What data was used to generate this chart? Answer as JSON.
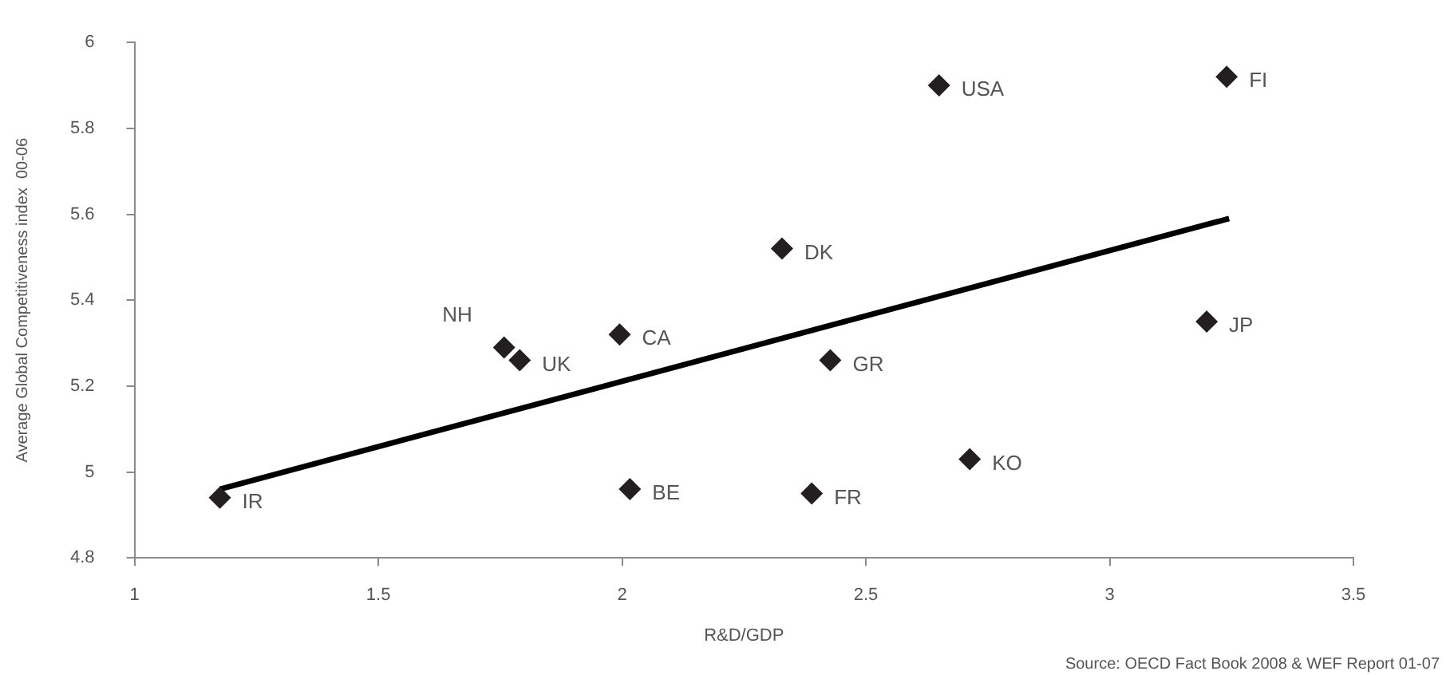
{
  "chart_data": {
    "type": "scatter",
    "xlabel": "R&D/GDP",
    "ylabel": "Average Global Competitiveness index  00-06",
    "xlim": [
      1,
      3.5
    ],
    "xticks": [
      1,
      1.5,
      2,
      2.5,
      3,
      3.5
    ],
    "ylim": [
      4.8,
      6
    ],
    "yticks": [
      4.8,
      5,
      5.2,
      5.4,
      5.6,
      5.8,
      6
    ],
    "series": [
      {
        "marker": "diamond",
        "color": "#231f20",
        "x": [
          1.175,
          1.758,
          1.79,
          1.995,
          2.016,
          2.328,
          2.389,
          2.427,
          2.65,
          2.713,
          3.199,
          3.24
        ],
        "values": [
          4.94,
          5.29,
          5.26,
          5.32,
          4.96,
          5.52,
          4.95,
          5.26,
          5.9,
          5.03,
          5.35,
          5.92
        ]
      },
      {
        "type": "line",
        "marker": "none",
        "color": "#000000",
        "x": [
          1.175,
          3.245
        ],
        "values": [
          4.96,
          5.59
        ]
      }
    ],
    "annotations": [
      {
        "text": "IR",
        "x": 1.175,
        "y": 4.94
      },
      {
        "text": "NH",
        "x": 1.758,
        "y": 5.29
      },
      {
        "text": "UK",
        "x": 1.79,
        "y": 5.26
      },
      {
        "text": "CA",
        "x": 1.995,
        "y": 5.32
      },
      {
        "text": "BE",
        "x": 2.016,
        "y": 4.96
      },
      {
        "text": "DK",
        "x": 2.328,
        "y": 5.52
      },
      {
        "text": "FR",
        "x": 2.389,
        "y": 4.95
      },
      {
        "text": "GR",
        "x": 2.427,
        "y": 5.26
      },
      {
        "text": "USA",
        "x": 2.65,
        "y": 5.9
      },
      {
        "text": "KO",
        "x": 2.713,
        "y": 5.03
      },
      {
        "text": "JP",
        "x": 3.199,
        "y": 5.35
      },
      {
        "text": "FI",
        "x": 3.24,
        "y": 5.92
      },
      "Source: OECD Fact Book 2008 & WEF Report 01-07"
    ]
  }
}
